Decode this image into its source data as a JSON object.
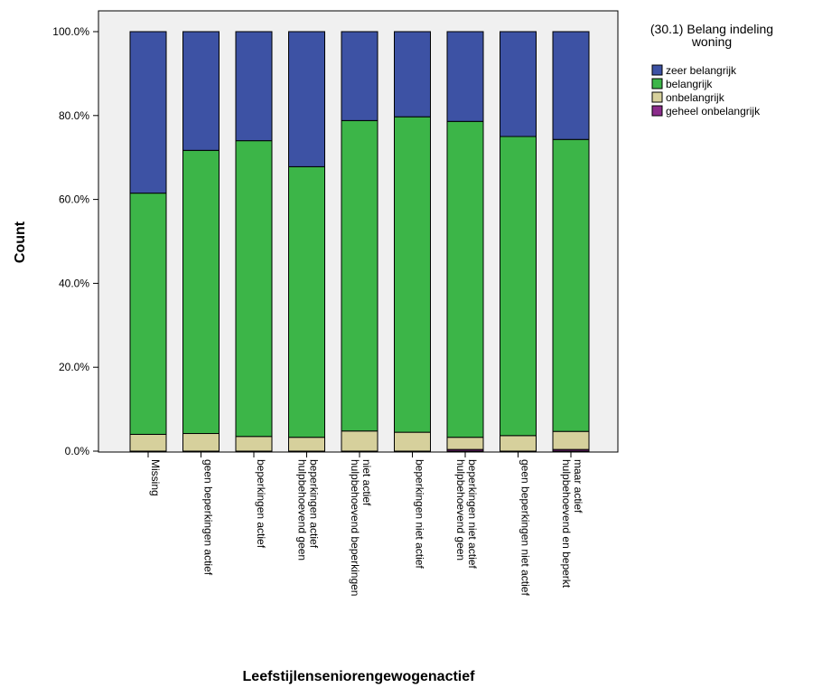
{
  "chart_data": {
    "type": "bar",
    "stacked": true,
    "percent": true,
    "xlabel": "Leefstijlenseniorengewogenactief",
    "ylabel": "Count",
    "ylim": [
      0,
      100
    ],
    "yticks": [
      "0.0%",
      "20.0%",
      "40.0%",
      "60.0%",
      "80.0%",
      "100.0%"
    ],
    "categories": [
      [
        "Missing"
      ],
      [
        "geen beperkingen actief"
      ],
      [
        "beperkingen actief"
      ],
      [
        "hulpbehoevend geen",
        "beperkingen actief"
      ],
      [
        "hulpbehoevend  beperkingen",
        "niet actief"
      ],
      [
        "beperkingen niet actief"
      ],
      [
        "hulpbehoevend geen",
        "beperkingen niet actief"
      ],
      [
        "geen beperkingen niet actief"
      ],
      [
        "hulpbehoevend en beperkt",
        "maar actief"
      ]
    ],
    "legend_title": [
      "(30.1) Belang indeling",
      "woning"
    ],
    "legend_position": "right",
    "plot_background": "#f0f0f0",
    "series": [
      {
        "name": "geheel onbelangrijk",
        "color": "#8b2c8b",
        "values": [
          0.0,
          0.0,
          0.0,
          0.0,
          0.0,
          0.0,
          0.4,
          0.0,
          0.4
        ]
      },
      {
        "name": "onbelangrijk",
        "color": "#d6d09c",
        "values": [
          4.0,
          4.2,
          3.5,
          3.3,
          4.8,
          4.5,
          2.9,
          3.7,
          4.3
        ]
      },
      {
        "name": "belangrijk",
        "color": "#3cb548",
        "values": [
          57.5,
          67.5,
          70.5,
          64.5,
          74.0,
          75.2,
          75.3,
          71.3,
          69.6
        ]
      },
      {
        "name": "zeer belangrijk",
        "color": "#3d52a4",
        "values": [
          38.5,
          28.3,
          26.0,
          32.2,
          21.2,
          20.3,
          21.4,
          25.0,
          25.7
        ]
      }
    ],
    "legend_order": [
      "zeer belangrijk",
      "belangrijk",
      "onbelangrijk",
      "geheel onbelangrijk"
    ]
  }
}
